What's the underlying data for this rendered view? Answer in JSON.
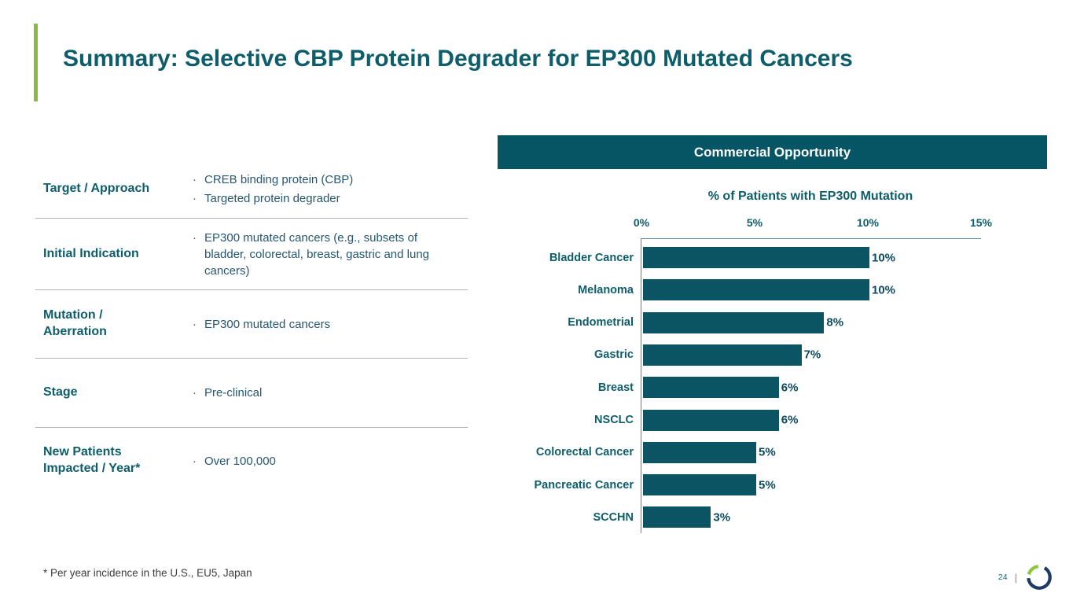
{
  "slide": {
    "title": "Summary: Selective CBP Protein Degrader for EP300 Mutated Cancers",
    "footnote": "* Per year incidence in the U.S., EU5, Japan",
    "page_number": "24",
    "accent_color": "#8cba3e"
  },
  "info_table": {
    "rows": [
      {
        "label": "Target / Approach",
        "bullets": [
          "CREB binding protein (CBP)",
          "Targeted protein degrader"
        ]
      },
      {
        "label": "Initial Indication",
        "bullets": [
          "EP300 mutated cancers (e.g., subsets of bladder, colorectal, breast, gastric and lung cancers)"
        ]
      },
      {
        "label": "Mutation / Aberration",
        "bullets": [
          "EP300 mutated cancers"
        ]
      },
      {
        "label": "Stage",
        "bullets": [
          "Pre-clinical"
        ]
      },
      {
        "label": "New Patients Impacted / Year*",
        "bullets": [
          "Over 100,000"
        ]
      }
    ]
  },
  "chart_panel": {
    "header": "Commercial Opportunity",
    "header_bg": "#055565"
  },
  "chart_data": {
    "type": "bar",
    "orientation": "horizontal",
    "title": "% of Patients with EP300 Mutation",
    "categories": [
      "Bladder Cancer",
      "Melanoma",
      "Endometrial",
      "Gastric",
      "Breast",
      "NSCLC",
      "Colorectal Cancer",
      "Pancreatic Cancer",
      "SCCHN"
    ],
    "values": [
      10,
      10,
      8,
      7,
      6,
      6,
      5,
      5,
      3
    ],
    "value_labels": [
      "10%",
      "10%",
      "8%",
      "7%",
      "6%",
      "6%",
      "5%",
      "5%",
      "3%"
    ],
    "xticks": [
      0,
      5,
      10,
      15
    ],
    "xtick_labels": [
      "0%",
      "5%",
      "10%",
      "15%"
    ],
    "xlim": [
      0,
      15
    ],
    "bar_color": "#0a5464",
    "grid": false,
    "legend": false
  },
  "logo": {
    "name": "ring-logo",
    "navy_color": "#1e3c63",
    "green_color": "#8cc63e"
  }
}
